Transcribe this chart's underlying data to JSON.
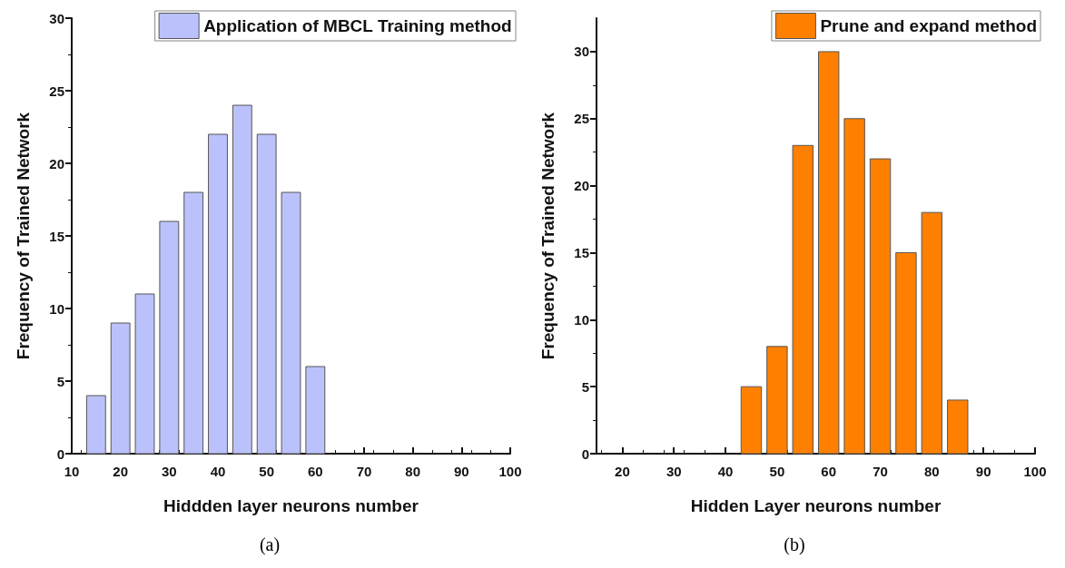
{
  "chart_data": [
    {
      "type": "histogram",
      "xlabel": "Hiddden layer neurons number",
      "ylabel": "Frequency of Trained Network",
      "annotations": [
        "(a)"
      ],
      "bins": [
        12.5,
        17.5,
        22.5,
        27.5,
        32.5,
        37.5,
        42.5,
        47.5,
        52.5,
        57.5,
        62.5
      ],
      "series": [
        {
          "name": "Application of MBCL Training method",
          "color": "#bbc2fb",
          "values": [
            4,
            9,
            11,
            16,
            18,
            22,
            24,
            22,
            18,
            6
          ]
        }
      ],
      "xlim": [
        10,
        100
      ],
      "xticks": [
        10,
        20,
        30,
        40,
        50,
        60,
        70,
        80,
        90,
        100
      ],
      "ylim": [
        0,
        30
      ],
      "yticks": [
        0,
        5,
        10,
        15,
        20,
        25,
        30
      ],
      "grid": false,
      "legend": "top right"
    },
    {
      "type": "histogram",
      "xlabel": "Hidden Layer neurons number",
      "ylabel": "Frequency of Trained Network",
      "annotations": [
        "(b)"
      ],
      "bins": [
        42.5,
        47.5,
        52.5,
        57.5,
        62.5,
        67.5,
        72.5,
        77.5,
        82.5,
        87.5
      ],
      "series": [
        {
          "name": "Prune and expand method",
          "color": "#ff8000",
          "values": [
            5,
            8,
            23,
            30,
            25,
            22,
            15,
            18,
            4
          ]
        }
      ],
      "xlim": [
        15,
        100
      ],
      "xticks": [
        20,
        30,
        40,
        50,
        60,
        70,
        80,
        90,
        100
      ],
      "ylim": [
        0,
        32.5
      ],
      "yticks": [
        0,
        5,
        10,
        15,
        20,
        25,
        30
      ],
      "grid": false,
      "legend": "top right"
    }
  ]
}
